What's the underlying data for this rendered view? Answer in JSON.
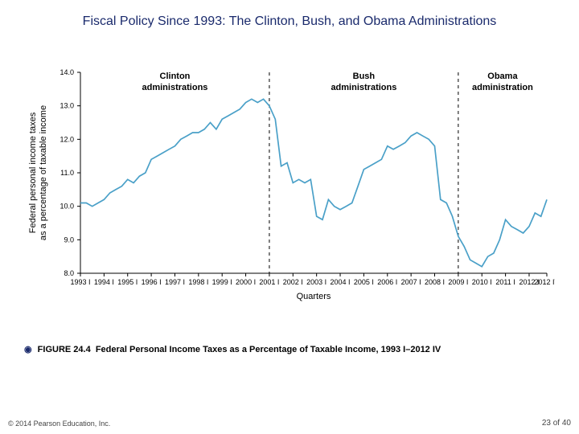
{
  "title": "Fiscal Policy Since 1993: The Clinton, Bush, and Obama Administrations",
  "chart": {
    "type": "line",
    "background_color": "#ffffff",
    "line_color": "#4aa0c8",
    "line_width": 1.7,
    "axis_color": "#000000",
    "divider_dash": "4,4",
    "divider_color": "#000000",
    "ylabel_line1": "Federal personal income taxes",
    "ylabel_line2": "as a percentage of taxable income",
    "xlabel": "Quarters",
    "ylim": [
      8.0,
      14.0
    ],
    "ytick_step": 1.0,
    "yticks": [
      8.0,
      9.0,
      10.0,
      11.0,
      12.0,
      13.0,
      14.0
    ],
    "ytick_labels": [
      "8.0",
      "9.0",
      "10.0",
      "11.0",
      "12.0",
      "13.0",
      "14.0"
    ],
    "x_start_year": 1993,
    "x_start_q": 1,
    "x_end_year": 2012,
    "x_end_q": 4,
    "xtick_labels": [
      "1993 I",
      "1994 I",
      "1995 I",
      "1996 I",
      "1997 I",
      "1998 I",
      "1999 I",
      "2000 I",
      "2001 I",
      "2002 I",
      "2003 I",
      "2004 I",
      "2005 I",
      "2006 I",
      "2007 I",
      "2008 I",
      "2009 I",
      "2010 I",
      "2011 I",
      "2012 I",
      "2012 IV"
    ],
    "regions": [
      {
        "label_l1": "Clinton",
        "label_l2": "administrations",
        "start_idx": 0,
        "end_idx": 32
      },
      {
        "label_l1": "Bush",
        "label_l2": "administrations",
        "start_idx": 32,
        "end_idx": 64
      },
      {
        "label_l1": "Obama",
        "label_l2": "administration",
        "start_idx": 64,
        "end_idx": 79
      }
    ],
    "series": [
      10.1,
      10.1,
      10.0,
      10.1,
      10.2,
      10.4,
      10.5,
      10.6,
      10.8,
      10.7,
      10.9,
      11.0,
      11.4,
      11.5,
      11.6,
      11.7,
      11.8,
      12.0,
      12.1,
      12.2,
      12.2,
      12.3,
      12.5,
      12.3,
      12.6,
      12.7,
      12.8,
      12.9,
      13.1,
      13.2,
      13.1,
      13.2,
      13.0,
      12.6,
      11.2,
      11.3,
      10.7,
      10.8,
      10.7,
      10.8,
      9.7,
      9.6,
      10.2,
      10.0,
      9.9,
      10.0,
      10.1,
      10.6,
      11.1,
      11.2,
      11.3,
      11.4,
      11.8,
      11.7,
      11.8,
      11.9,
      12.1,
      12.2,
      12.1,
      12.0,
      11.8,
      10.2,
      10.1,
      9.7,
      9.1,
      8.8,
      8.4,
      8.3,
      8.2,
      8.5,
      8.6,
      9.0,
      9.6,
      9.4,
      9.3,
      9.2,
      9.4,
      9.8,
      9.7,
      10.2
    ],
    "tick_fontsize": 9,
    "label_fontsize": 11,
    "region_fontsize": 11
  },
  "caption": {
    "figure_label": "FIGURE 24.4",
    "figure_title": "Federal Personal Income Taxes as a Percentage of Taxable Income, 1993 I–2012 IV"
  },
  "copyright": "© 2014 Pearson Education, Inc.",
  "page": {
    "current": "23",
    "sep": " of ",
    "total": "40"
  }
}
